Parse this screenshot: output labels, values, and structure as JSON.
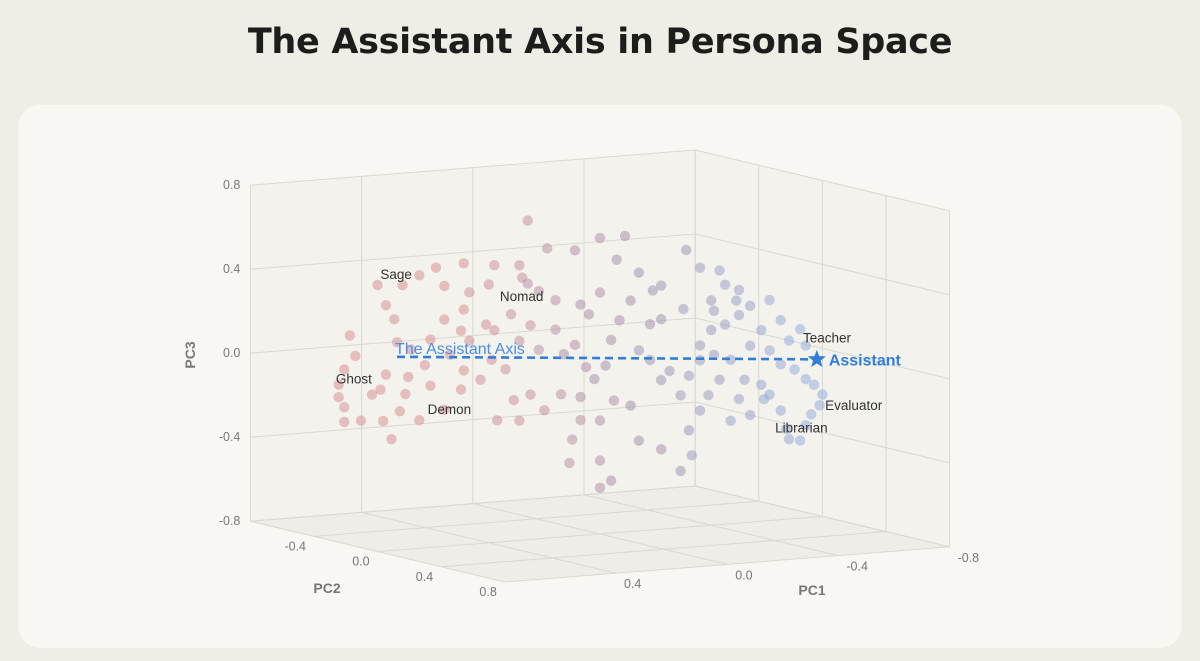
{
  "title": "The Assistant Axis in Persona Space",
  "chart_data": {
    "type": "scatter",
    "projection": "3d",
    "title": "The Assistant Axis in Persona Space",
    "axes": {
      "x": {
        "label": "PC1",
        "range": [
          -0.8,
          0.8
        ],
        "ticks": [
          "0.4",
          "0.0",
          "-0.4",
          "-0.8"
        ],
        "tick_values": [
          0.4,
          0.0,
          -0.4,
          -0.8
        ]
      },
      "y": {
        "label": "PC2",
        "range": [
          -0.8,
          0.8
        ],
        "ticks": [
          "-0.4",
          "0.0",
          "0.4",
          "0.8"
        ],
        "tick_values": [
          -0.4,
          0.0,
          0.4,
          0.8
        ]
      },
      "z": {
        "label": "PC3",
        "range": [
          -0.8,
          0.8
        ],
        "ticks": [
          "0.8",
          "0.4",
          "0.0",
          "-0.4",
          "-0.8"
        ],
        "tick_values": [
          0.8,
          0.4,
          0.0,
          -0.4,
          -0.8
        ]
      }
    },
    "grid": true,
    "colors": {
      "low": "#d98892",
      "mid": "#a08aa8",
      "high": "#8da8dc",
      "axis_line": "#2f7fd8",
      "label": "#333333"
    },
    "point_fields": [
      "pc1",
      "pc2",
      "pc3",
      "color_score"
    ],
    "points": [
      [
        0.9,
        0,
        0.24,
        0
      ],
      [
        0.88,
        0,
        0.14,
        0
      ],
      [
        0.92,
        0,
        0.08,
        0
      ],
      [
        0.94,
        0,
        0.01,
        0
      ],
      [
        0.94,
        0,
        -0.05,
        0
      ],
      [
        0.92,
        0,
        -0.1,
        0
      ],
      [
        0.92,
        0,
        -0.17,
        0
      ],
      [
        0.86,
        0,
        -0.17,
        0
      ],
      [
        0.82,
        0,
        -0.05,
        0
      ],
      [
        0.79,
        0,
        -0.03,
        0
      ],
      [
        0.77,
        0,
        0.04,
        0
      ],
      [
        0.78,
        0,
        -0.18,
        0
      ],
      [
        0.75,
        0,
        -0.27,
        0
      ],
      [
        0.72,
        0,
        -0.14,
        0
      ],
      [
        0.7,
        0,
        -0.06,
        0
      ],
      [
        0.69,
        0,
        0.02,
        0
      ],
      [
        0.68,
        0,
        0.15,
        0
      ],
      [
        0.73,
        0,
        0.19,
        0
      ],
      [
        0.74,
        0,
        0.3,
        0
      ],
      [
        0.77,
        0,
        0.37,
        0
      ],
      [
        0.8,
        0,
        0.47,
        0
      ],
      [
        0.71,
        0,
        0.46,
        0
      ],
      [
        0.65,
        0,
        0.5,
        0
      ],
      [
        0.59,
        0,
        0.53,
        0
      ],
      [
        0.56,
        0,
        0.44,
        0
      ],
      [
        0.49,
        0,
        0.54,
        0
      ],
      [
        0.47,
        0,
        0.4,
        0.1
      ],
      [
        0.4,
        0,
        0.43,
        0.1
      ],
      [
        0.38,
        0,
        0.52,
        0.1
      ],
      [
        0.29,
        0,
        0.51,
        0.2
      ],
      [
        0.28,
        0,
        0.45,
        0.2
      ],
      [
        0.26,
        0,
        0.42,
        0.3
      ],
      [
        0.22,
        0,
        0.38,
        0.3
      ],
      [
        0.19,
        0,
        0.58,
        0.3
      ],
      [
        0.09,
        0,
        0.56,
        0.4
      ],
      [
        0.26,
        0,
        0.72,
        0.2
      ],
      [
        0.0,
        0,
        0.61,
        0.4
      ],
      [
        -0.09,
        0,
        0.61,
        0.5
      ],
      [
        -0.06,
        0,
        0.5,
        0.5
      ],
      [
        -0.14,
        0,
        0.43,
        0.5
      ],
      [
        -0.19,
        0,
        0.34,
        0.6
      ],
      [
        -0.22,
        0,
        0.36,
        0.6
      ],
      [
        -0.31,
        0,
        0.52,
        0.6
      ],
      [
        -0.3,
        0,
        0.24,
        0.7
      ],
      [
        -0.36,
        0,
        0.43,
        0.7
      ],
      [
        -0.43,
        0,
        0.41,
        0.8
      ],
      [
        -0.49,
        0,
        0.26,
        0.8
      ],
      [
        -0.54,
        0,
        0.23,
        0.8
      ],
      [
        -0.61,
        0,
        0.25,
        0.9
      ],
      [
        -0.65,
        0,
        0.15,
        0.9
      ],
      [
        -0.68,
        0,
        0.05,
        1
      ],
      [
        -0.72,
        0,
        0.1,
        1
      ],
      [
        -0.7,
        0,
        -0.09,
        1
      ],
      [
        -0.74,
        0,
        -0.14,
        1
      ],
      [
        -0.77,
        0,
        -0.17,
        1
      ],
      [
        -0.8,
        0,
        -0.22,
        1
      ],
      [
        -0.76,
        0,
        -0.31,
        1
      ],
      [
        -0.72,
        0,
        -0.43,
        1
      ],
      [
        -0.68,
        0,
        -0.42,
        0.9
      ],
      [
        -0.65,
        0,
        -0.28,
        0.9
      ],
      [
        -0.59,
        0,
        -0.22,
        0.9
      ],
      [
        -0.54,
        0,
        -0.29,
        0.8
      ],
      [
        -0.5,
        0,
        -0.21,
        0.8
      ],
      [
        -0.47,
        0,
        -0.31,
        0.8
      ],
      [
        -0.43,
        0,
        -0.11,
        0.7
      ],
      [
        -0.39,
        0,
        -0.18,
        0.7
      ],
      [
        -0.36,
        0,
        -0.25,
        0.7
      ],
      [
        -0.32,
        0,
        -0.34,
        0.6
      ],
      [
        -0.33,
        0,
        -0.46,
        0.7
      ],
      [
        -0.29,
        0,
        -0.53,
        0.6
      ],
      [
        -0.22,
        0,
        -0.42,
        0.5
      ],
      [
        -0.14,
        0,
        -0.37,
        0.5
      ],
      [
        -0.11,
        0,
        -0.2,
        0.5
      ],
      [
        -0.05,
        0,
        -0.17,
        0.4
      ],
      [
        0.0,
        0,
        -0.26,
        0.4
      ],
      [
        0.07,
        0,
        -0.25,
        0.3
      ],
      [
        0.1,
        0,
        -0.34,
        0.3
      ],
      [
        0.11,
        0,
        -0.45,
        0.3
      ],
      [
        0.07,
        0,
        -0.14,
        0.4
      ],
      [
        0.14,
        0,
        -0.12,
        0.3
      ],
      [
        0.2,
        0,
        -0.19,
        0.2
      ],
      [
        0.25,
        0,
        -0.11,
        0.2
      ],
      [
        0.29,
        0,
        -0.23,
        0.1
      ],
      [
        0.31,
        0,
        -0.13,
        0.1
      ],
      [
        0.37,
        0,
        -0.22,
        0.1
      ],
      [
        0.43,
        0,
        -0.02,
        0.1
      ],
      [
        0.49,
        0,
        0.03,
        0
      ],
      [
        0.5,
        0,
        -0.06,
        0
      ],
      [
        0.56,
        0,
        -0.15,
        0
      ],
      [
        0.61,
        0,
        -0.03,
        0
      ],
      [
        0.65,
        0,
        -0.19,
        0
      ],
      [
        0.61,
        0,
        0.19,
        0
      ],
      [
        0.56,
        0,
        0.28,
        0
      ],
      [
        0.5,
        0,
        0.22,
        0
      ],
      [
        0.47,
        0,
        0.17,
        0.1
      ],
      [
        0.41,
        0,
        0.24,
        0.1
      ],
      [
        0.38,
        0,
        0.21,
        0.1
      ],
      [
        0.32,
        0,
        0.28,
        0.2
      ],
      [
        0.29,
        0,
        0.15,
        0.2
      ],
      [
        0.25,
        0,
        0.22,
        0.2
      ],
      [
        0.16,
        0,
        0.19,
        0.3
      ],
      [
        0.13,
        0,
        0.07,
        0.4
      ],
      [
        0.09,
        0,
        0.11,
        0.4
      ],
      [
        0.05,
        0,
        0.0,
        0.4
      ],
      [
        0.02,
        0,
        -0.06,
        0.5
      ],
      [
        -0.02,
        0,
        0.0,
        0.5
      ],
      [
        -0.04,
        0,
        0.12,
        0.5
      ],
      [
        -0.07,
        0,
        0.21,
        0.5
      ],
      [
        -0.11,
        0,
        0.3,
        0.5
      ],
      [
        -0.14,
        0,
        0.06,
        0.6
      ],
      [
        -0.18,
        0,
        0.01,
        0.6
      ],
      [
        -0.22,
        0,
        -0.09,
        0.6
      ],
      [
        -0.25,
        0,
        -0.05,
        0.6
      ],
      [
        -0.29,
        0,
        -0.17,
        0.7
      ],
      [
        -0.32,
        0,
        -0.08,
        0.7
      ],
      [
        -0.36,
        0,
        0.06,
        0.7
      ],
      [
        -0.4,
        0,
        0.13,
        0.7
      ],
      [
        -0.41,
        0,
        0.22,
        0.7
      ],
      [
        -0.45,
        0,
        0.15,
        0.8
      ],
      [
        -0.5,
        0,
        0.19,
        0.8
      ],
      [
        -0.54,
        0,
        0.04,
        0.8
      ],
      [
        -0.58,
        0,
        0.11,
        0.9
      ],
      [
        -0.61,
        0,
        0.01,
        0.9
      ],
      [
        -0.65,
        0,
        -0.06,
        0.9
      ],
      [
        -0.58,
        0,
        -0.15,
        0.9
      ],
      [
        -0.52,
        0,
        -0.12,
        0.8
      ],
      [
        -0.47,
        0,
        -0.02,
        0.8
      ],
      [
        -0.41,
        0,
        0.01,
        0.7
      ],
      [
        -0.36,
        0,
        -0.01,
        0.7
      ],
      [
        -0.22,
        0,
        0.2,
        0.6
      ],
      [
        -0.18,
        0,
        0.18,
        0.5
      ],
      [
        0.0,
        0,
        0.35,
        0.4
      ],
      [
        0.04,
        0,
        0.25,
        0.4
      ],
      [
        0.07,
        0,
        0.3,
        0.4
      ],
      [
        0.16,
        0,
        0.33,
        0.3
      ],
      [
        0.34,
        0,
        0.02,
        0.1
      ],
      [
        0.39,
        0,
        0.07,
        0.1
      ],
      [
        0.54,
        0,
        0.11,
        0
      ],
      [
        0.63,
        0,
        0.07,
        0
      ],
      [
        0.0,
        0,
        -0.45,
        0.4
      ],
      [
        -0.04,
        0,
        -0.55,
        0.5
      ],
      [
        0.0,
        0,
        -0.58,
        0.4
      ],
      [
        0.22,
        0,
        0.1,
        0.3
      ],
      [
        0.49,
        0,
        0.32,
        0
      ],
      [
        -0.67,
        0,
        -0.37,
        0.9
      ],
      [
        -0.74,
        0,
        -0.36,
        1
      ],
      [
        -0.79,
        0,
        -0.27,
        1
      ],
      [
        -0.74,
        0,
        0.02,
        1
      ],
      [
        -0.61,
        0,
        -0.2,
        0.9
      ],
      [
        -0.5,
        0,
        0.31,
        0.8
      ],
      [
        -0.45,
        0,
        0.34,
        0.8
      ],
      [
        -0.4,
        0,
        0.27,
        0.7
      ]
    ],
    "annotations": [
      {
        "text": "Sage",
        "pc1": 0.79,
        "pc2": 0,
        "pc3": 0.52
      },
      {
        "text": "Nomad",
        "pc1": 0.36,
        "pc2": 0,
        "pc3": 0.37
      },
      {
        "text": "Ghost",
        "pc1": 0.95,
        "pc2": 0,
        "pc3": 0.04
      },
      {
        "text": "Demon",
        "pc1": 0.62,
        "pc2": 0,
        "pc3": -0.14
      },
      {
        "text": "Teacher",
        "pc1": -0.73,
        "pc2": 0,
        "pc3": 0.06
      },
      {
        "text": "Evaluator",
        "pc1": -0.81,
        "pc2": 0,
        "pc3": -0.27
      },
      {
        "text": "Librarian",
        "pc1": -0.63,
        "pc2": 0,
        "pc3": -0.36
      }
    ],
    "assistant": {
      "label": "Assistant",
      "pc1": -0.78,
      "pc2": 0,
      "pc3": -0.05,
      "marker": "star"
    },
    "assistant_axis": {
      "label": "The Assistant Axis",
      "from": {
        "pc1": 0.73,
        "pc2": 0,
        "pc3": 0.12
      },
      "to": {
        "pc1": -0.78,
        "pc2": 0,
        "pc3": -0.05
      },
      "style": "dashed"
    }
  }
}
